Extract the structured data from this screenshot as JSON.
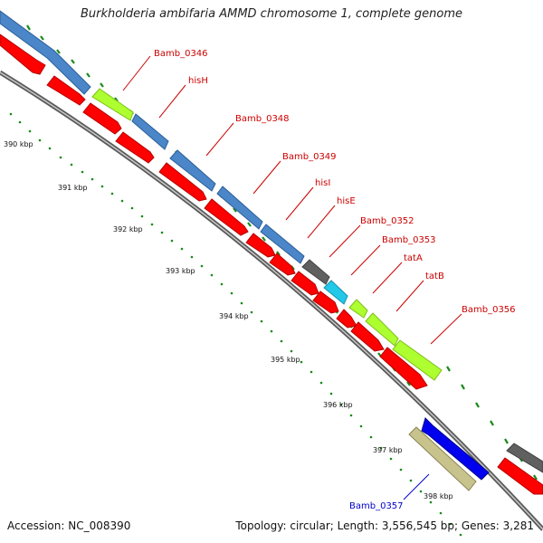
{
  "header": {
    "title": "Burkholderia ambifaria AMMD chromosome 1, complete genome"
  },
  "footer": {
    "accession": "Accession: NC_008390",
    "summary": "Topology: circular; Length: 3,556,545 bp; Genes: 3,281"
  },
  "colors": {
    "backbone": "#8c8c8c",
    "cds_blue": "#4a86c8",
    "cds_red": "#ff0000",
    "cds_green": "#adff2f",
    "cds_gray": "#606060",
    "cds_cyan": "#22c8e8",
    "cds_navy": "#0000ee",
    "cds_khaki": "#c8c38c",
    "tick": "#1a8a1a",
    "label_red": "#cc0000",
    "label_blue": "#0000cc"
  },
  "ruler": {
    "ticks": [
      "390 kbp",
      "391 kbp",
      "392 kbp",
      "393 kbp",
      "394 kbp",
      "395 kbp",
      "396 kbp",
      "397 kbp",
      "398 kbp"
    ]
  },
  "gene_labels": [
    "Bamb_0346",
    "hisH",
    "Bamb_0348",
    "Bamb_0349",
    "hisI",
    "hisE",
    "Bamb_0352",
    "Bamb_0353",
    "tatA",
    "tatB",
    "Bamb_0356",
    "Bamb_0357"
  ]
}
